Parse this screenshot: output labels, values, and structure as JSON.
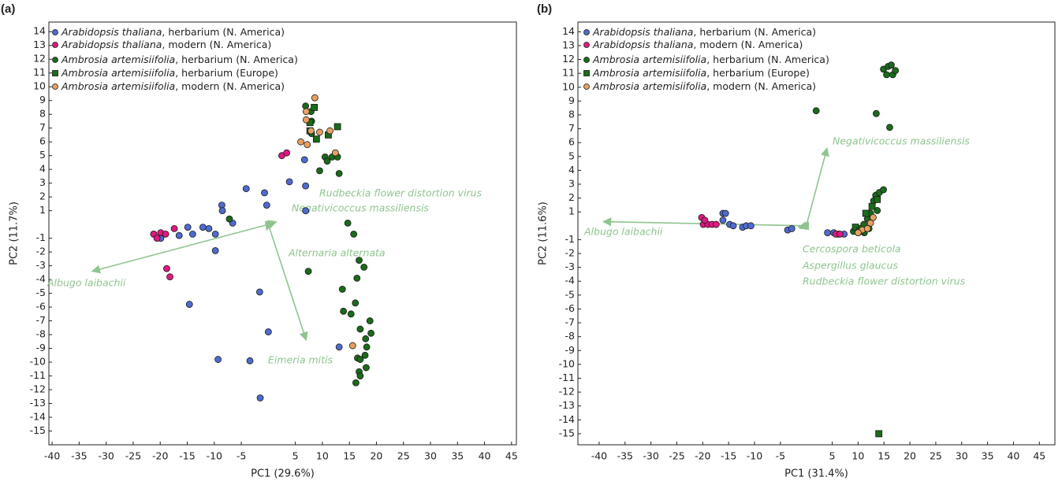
{
  "chart_data": [
    {
      "type": "scatter",
      "panel_label": "(a)",
      "x_label": "PC1 (29.6%)",
      "y_label": "PC2 (11.7%)",
      "xlim": [
        -40.6,
        45.9
      ],
      "ylim": [
        -16,
        14.7
      ],
      "xticks": [
        -40,
        -35,
        -30,
        -25,
        -20,
        -15,
        -10,
        -5,
        5,
        10,
        15,
        20,
        25,
        30,
        35,
        40,
        45
      ],
      "yticks": [
        14,
        13,
        12,
        11,
        10,
        9,
        8,
        7,
        6,
        5,
        4,
        3,
        2,
        1,
        -1,
        -2,
        -3,
        -4,
        -5,
        -6,
        -7,
        -8,
        -9,
        -10,
        -11,
        -12,
        -13,
        -14,
        -15
      ],
      "arrow_color": "#8fc490",
      "series": [
        {
          "name": "Arabidopsis thaliana, herbarium (N. America)",
          "color": "#4f6bd0",
          "marker": "circle",
          "x": [
            -21.2,
            -19.9,
            -16.5,
            -14.9,
            -14.0,
            -12.1,
            -11.0,
            -9.8,
            -8.6,
            -8.5,
            -9.8,
            -6.6,
            -4.1,
            -0.7,
            -0.3,
            3.9,
            6.9,
            6.9,
            6.7,
            -14.6,
            -1.6,
            0.0,
            -9.3,
            -3.4,
            -1.5,
            13.1
          ],
          "y": [
            -0.7,
            -1.0,
            -0.8,
            -0.2,
            -0.7,
            -0.2,
            -0.3,
            -0.7,
            1.4,
            1.0,
            -1.9,
            0.1,
            2.6,
            2.3,
            1.4,
            3.1,
            1.0,
            2.8,
            4.7,
            -5.8,
            -4.9,
            -7.8,
            -9.8,
            -9.9,
            -12.6,
            -8.9
          ]
        },
        {
          "name": "Arabidopsis thaliana, modern (N. America)",
          "color": "#e0197f",
          "marker": "circle",
          "x": [
            -21.2,
            -20.6,
            -19.9,
            -19.0,
            -18.8,
            -18.2,
            -17.4,
            2.5,
            3.4
          ],
          "y": [
            -0.7,
            -1.0,
            -0.6,
            -0.7,
            -3.2,
            -3.8,
            -0.3,
            5.0,
            5.2
          ]
        },
        {
          "name": "Ambrosia artemisiifolia, herbarium (N. America)",
          "color": "#1a6b1a",
          "marker": "circle",
          "x": [
            -7.2,
            6.9,
            7.9,
            8.0,
            8.0,
            9.5,
            10.5,
            10.9,
            11.8,
            12.8,
            13.1,
            7.4,
            14.7,
            15.8,
            16.8,
            17.7,
            16.4,
            13.7,
            13.9,
            15.3,
            16.1,
            17.0,
            18.0,
            18.8,
            19.0,
            18.2,
            16.5,
            17.0,
            18.1,
            16.8,
            17.0,
            16.2,
            17.9
          ],
          "y": [
            0.4,
            8.6,
            8.2,
            7.5,
            6.6,
            3.9,
            4.9,
            4.6,
            4.9,
            4.9,
            3.7,
            -3.4,
            0.1,
            -0.7,
            -2.6,
            -3.1,
            -3.9,
            -4.7,
            -6.3,
            -6.5,
            -5.7,
            -7.6,
            -8.3,
            -7.0,
            -7.9,
            -8.9,
            -9.7,
            -9.8,
            -10.4,
            -10.7,
            -11.0,
            -11.5,
            -9.5
          ]
        },
        {
          "name": "Ambrosia artemisiifolia, herbarium (Europe)",
          "color": "#1a6b1a",
          "marker": "square",
          "x": [
            8.5,
            7.7,
            7.7,
            8.9,
            11.1,
            12.8
          ],
          "y": [
            8.5,
            7.4,
            6.8,
            6.2,
            6.5,
            7.1
          ]
        },
        {
          "name": "Ambrosia artemisiifolia, modern (N. America)",
          "color": "#e8a060",
          "marker": "circle",
          "x": [
            7.0,
            8.6,
            7.0,
            7.9,
            9.5,
            11.4,
            6.0,
            7.2,
            12.4,
            15.6
          ],
          "y": [
            8.2,
            9.2,
            7.6,
            6.8,
            6.7,
            6.8,
            6.0,
            5.8,
            5.2,
            -8.8
          ]
        }
      ],
      "arrows": [
        {
          "label": "Rudbeckia flower distortion virus",
          "x": 1.5,
          "y": 0.2
        },
        {
          "label": "Negativicoccus massiliensis",
          "x": 1.2,
          "y": 0.1
        },
        {
          "label": "Alternaria alternata",
          "x": -0.3,
          "y": -0.4
        },
        {
          "label": "Albugo laibachii",
          "x": -32.6,
          "y": -3.4
        },
        {
          "label": "Eimeria mitis",
          "x": 7.0,
          "y": -8.4
        }
      ]
    },
    {
      "type": "scatter",
      "panel_label": "(b)",
      "x_label": "PC1 (31.4%)",
      "y_label": "PC2 (11.6%)",
      "xlim": [
        -44.1,
        48
      ],
      "ylim": [
        -15.8,
        14.7
      ],
      "xticks": [
        -40,
        -35,
        -30,
        -25,
        -20,
        -15,
        -10,
        -5,
        5,
        10,
        15,
        20,
        25,
        30,
        35,
        40,
        45
      ],
      "yticks": [
        14,
        13,
        12,
        11,
        10,
        9,
        8,
        7,
        6,
        5,
        4,
        3,
        2,
        1,
        -1,
        -2,
        -3,
        -4,
        -5,
        -6,
        -7,
        -8,
        -9,
        -10,
        -11,
        -12,
        -13,
        -14,
        -15
      ],
      "arrow_color": "#8fc490",
      "series": [
        {
          "name": "Arabidopsis thaliana, herbarium (N. America)",
          "color": "#4f6bd0",
          "marker": "circle",
          "x": [
            -16.1,
            -15.6,
            -16.1,
            -14.8,
            -14.1,
            -12.3,
            -11.6,
            -10.7,
            -3.6,
            -2.8,
            4.1,
            5.3,
            6.2,
            7.3
          ],
          "y": [
            0.9,
            0.9,
            0.4,
            0.1,
            0.0,
            -0.1,
            0.0,
            0.0,
            -0.3,
            -0.2,
            -0.5,
            -0.5,
            -0.6,
            -0.6
          ]
        },
        {
          "name": "Arabidopsis thaliana, modern (N. America)",
          "color": "#e0197f",
          "marker": "circle",
          "x": [
            -20.2,
            -19.9,
            -19.0,
            -18.2,
            -17.4,
            -19.6,
            5.7,
            6.5
          ],
          "y": [
            0.6,
            0.1,
            0.1,
            0.1,
            0.1,
            0.4,
            -0.6,
            -0.6
          ]
        },
        {
          "name": "Ambrosia artemisiifolia, herbarium (N. America)",
          "color": "#1a6b1a",
          "marker": "circle",
          "x": [
            1.9,
            13.5,
            16.1,
            14.9,
            15.8,
            16.4,
            15.5,
            16.7,
            17.2,
            9.1,
            10.3,
            11.1,
            11.8,
            12.4,
            12.7,
            13.0,
            13.4,
            14.1,
            14.9,
            12.1,
            11.2,
            10.0,
            13.7
          ],
          "y": [
            8.3,
            8.1,
            7.1,
            11.3,
            11.5,
            11.6,
            10.9,
            10.9,
            11.2,
            -0.4,
            -0.2,
            0.1,
            0.5,
            0.9,
            1.4,
            1.8,
            2.2,
            2.4,
            2.6,
            -0.2,
            -0.5,
            -0.5,
            1.1
          ]
        },
        {
          "name": "Ambrosia artemisiifolia, herbarium (Europe)",
          "color": "#1a6b1a",
          "marker": "square",
          "x": [
            11.5,
            12.7,
            13.7,
            9.5,
            10.3,
            14.0
          ],
          "y": [
            0.9,
            1.4,
            1.9,
            -0.1,
            -0.4,
            -15.0
          ]
        },
        {
          "name": "Ambrosia artemisiifolia, modern (N. America)",
          "color": "#e8a060",
          "marker": "circle",
          "x": [
            10.8,
            11.8,
            12.4,
            12.9,
            10.0
          ],
          "y": [
            -0.3,
            -0.2,
            0.2,
            0.6,
            -0.5
          ]
        }
      ],
      "arrows": [
        {
          "label": "Negativicoccus massiliensis",
          "x": 4.0,
          "y": 5.6
        },
        {
          "label": "Albugo laibachii",
          "x": -39.2,
          "y": 0.3
        },
        {
          "label": "Cercospora beticola",
          "x": -1.5,
          "y": -0.1
        },
        {
          "label": "Aspergillus glaucus",
          "x": -1.2,
          "y": -0.2
        },
        {
          "label": "Rudbeckia flower distortion virus",
          "x": -1.0,
          "y": 0.0
        }
      ]
    }
  ]
}
